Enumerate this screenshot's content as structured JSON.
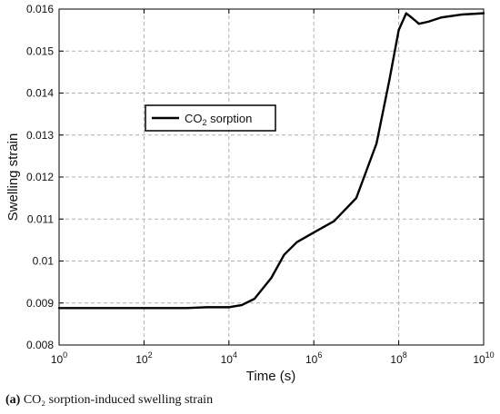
{
  "chart_data": {
    "type": "line",
    "xscale": "log",
    "xlabel": "Time (s)",
    "ylabel": "Swelling strain",
    "xlim": [
      1,
      10000000000
    ],
    "ylim": [
      0.008,
      0.016
    ],
    "grid": true,
    "legend_position": "upper-left",
    "x_ticks": [
      {
        "value": 1,
        "base": "10",
        "exp": "0"
      },
      {
        "value": 100,
        "base": "10",
        "exp": "2"
      },
      {
        "value": 10000,
        "base": "10",
        "exp": "4"
      },
      {
        "value": 1000000,
        "base": "10",
        "exp": "6"
      },
      {
        "value": 100000000,
        "base": "10",
        "exp": "8"
      },
      {
        "value": 10000000000,
        "base": "10",
        "exp": "10"
      }
    ],
    "y_ticks": [
      {
        "value": 0.008,
        "label": "0.008"
      },
      {
        "value": 0.009,
        "label": "0.009"
      },
      {
        "value": 0.01,
        "label": "0.01"
      },
      {
        "value": 0.011,
        "label": "0.011"
      },
      {
        "value": 0.012,
        "label": "0.012"
      },
      {
        "value": 0.013,
        "label": "0.013"
      },
      {
        "value": 0.014,
        "label": "0.014"
      },
      {
        "value": 0.015,
        "label": "0.015"
      },
      {
        "value": 0.016,
        "label": "0.016"
      }
    ],
    "series": [
      {
        "legend_main": "CO",
        "legend_sub": "2",
        "legend_tail": " sorption",
        "color": "#000000",
        "x": [
          1,
          100,
          1000,
          3000,
          10000,
          20000,
          40000,
          100000,
          200000,
          400000,
          1000000,
          3000000,
          10000000,
          30000000,
          60000000,
          100000000,
          150000000,
          200000000,
          300000000,
          500000000,
          1000000000,
          3000000000,
          10000000000
        ],
        "y": [
          0.00888,
          0.00888,
          0.00888,
          0.0089,
          0.0089,
          0.00895,
          0.0091,
          0.0096,
          0.01015,
          0.01045,
          0.01068,
          0.01095,
          0.0115,
          0.0128,
          0.0143,
          0.0155,
          0.0159,
          0.0158,
          0.01565,
          0.0157,
          0.0158,
          0.01587,
          0.0159
        ]
      }
    ]
  },
  "caption": {
    "label": "(a)",
    "text": " CO₂ sorption-induced swelling strain"
  }
}
